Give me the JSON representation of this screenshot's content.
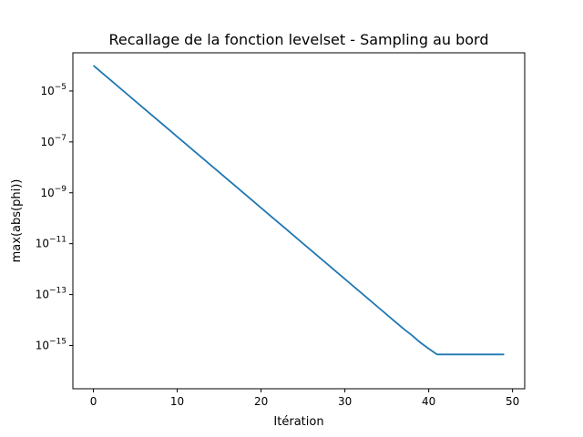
{
  "chart_data": {
    "type": "line",
    "title": "Recallage de la fonction levelset - Sampling au bord",
    "xlabel": "Itération",
    "ylabel": "max(abs(phi))",
    "xlim": [
      -2.45,
      51.45
    ],
    "ylim_log10": [
      -16.7,
      -3.5
    ],
    "yscale": "log",
    "grid": false,
    "x_ticks": [
      0,
      10,
      20,
      30,
      40,
      50
    ],
    "x_tick_labels": [
      "0",
      "10",
      "20",
      "30",
      "40",
      "50"
    ],
    "y_ticks_log10": [
      -15,
      -13,
      -11,
      -9,
      -7,
      -5
    ],
    "y_tick_labels": [
      {
        "base": "10",
        "exp": "−15"
      },
      {
        "base": "10",
        "exp": "−13"
      },
      {
        "base": "10",
        "exp": "−11"
      },
      {
        "base": "10",
        "exp": "−9"
      },
      {
        "base": "10",
        "exp": "−7"
      },
      {
        "base": "10",
        "exp": "−5"
      }
    ],
    "series": [
      {
        "color": "#1f77b4",
        "x": [
          0,
          1,
          2,
          3,
          4,
          5,
          6,
          7,
          8,
          9,
          10,
          11,
          12,
          13,
          14,
          15,
          16,
          17,
          18,
          19,
          20,
          21,
          22,
          23,
          24,
          25,
          26,
          27,
          28,
          29,
          30,
          31,
          32,
          33,
          34,
          35,
          36,
          37,
          38,
          39,
          40,
          41,
          42,
          43,
          44,
          45,
          46,
          47,
          48,
          49
        ],
        "y": [
          0.0001,
          5.25e-05,
          2.76e-05,
          1.45e-05,
          7.61e-06,
          4e-06,
          2.1e-06,
          1.1e-06,
          5.8e-07,
          3.04e-07,
          1.6e-07,
          8.4e-08,
          4.41e-08,
          2.32e-08,
          1.22e-08,
          6.4e-09,
          3.36e-09,
          1.77e-09,
          9.27e-10,
          4.87e-10,
          2.56e-10,
          1.34e-10,
          7.06e-11,
          3.71e-11,
          1.95e-11,
          1.02e-11,
          5.38e-12,
          2.82e-12,
          1.48e-12,
          7.79e-13,
          4.09e-13,
          2.15e-13,
          1.13e-13,
          5.93e-14,
          3.11e-14,
          1.64e-14,
          8.58e-15,
          4.51e-15,
          2.5e-15,
          1.3e-15,
          7.5e-16,
          4.44e-16,
          4.44e-16,
          4.44e-16,
          4.44e-16,
          4.44e-16,
          4.44e-16,
          4.44e-16,
          4.44e-16,
          4.44e-16
        ]
      }
    ]
  }
}
